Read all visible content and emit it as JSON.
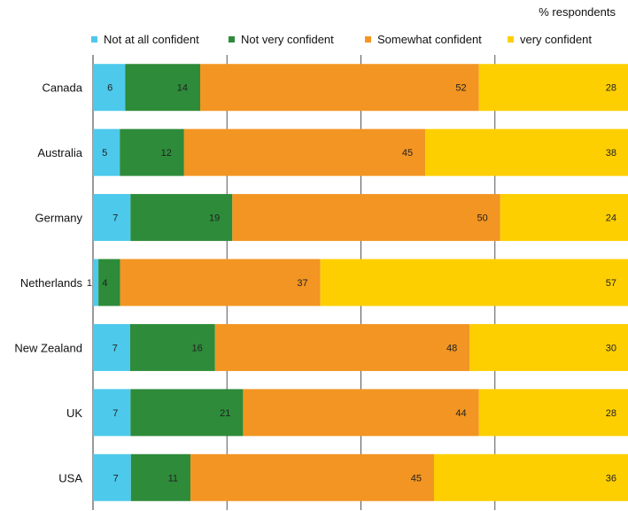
{
  "chart_data": {
    "type": "bar",
    "stacked": true,
    "orientation": "horizontal",
    "unit_label": "% respondents",
    "categories": [
      "Canada",
      "Australia",
      "Germany",
      "Netherlands",
      "New Zealand",
      "UK",
      "USA"
    ],
    "series": [
      {
        "name": "Not at all confident",
        "color": "#4dc9eb",
        "values": [
          6,
          5,
          7,
          1,
          7,
          7,
          7
        ]
      },
      {
        "name": "Not very confident",
        "color": "#2e8b3a",
        "values": [
          14,
          12,
          19,
          4,
          16,
          21,
          11
        ]
      },
      {
        "name": "Somewhat confident",
        "color": "#f39522",
        "values": [
          52,
          45,
          50,
          37,
          48,
          44,
          45
        ]
      },
      {
        "name": "very confident",
        "color": "#fecf00",
        "values": [
          28,
          38,
          24,
          57,
          30,
          28,
          36
        ]
      }
    ],
    "legend_position": "top",
    "grid": true
  }
}
